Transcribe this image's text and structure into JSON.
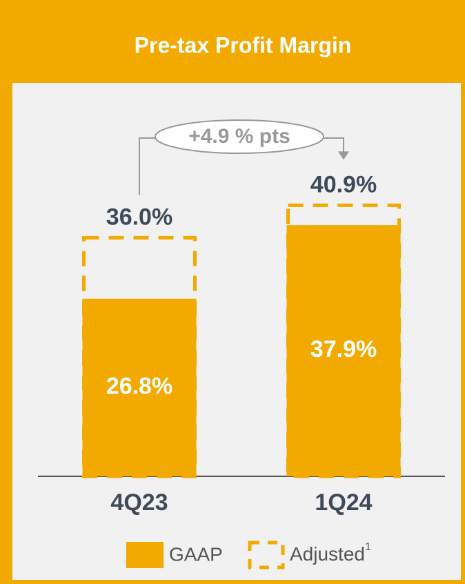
{
  "chart_data": {
    "type": "bar",
    "title": "Pre-tax Profit Margin",
    "categories": [
      "4Q23",
      "1Q24"
    ],
    "series": [
      {
        "name": "GAAP",
        "color": "#f2a900",
        "values": [
          26.8,
          37.9
        ],
        "value_labels": [
          "26.8%",
          "37.9%"
        ]
      },
      {
        "name": "Adjusted",
        "color": "#f2a900",
        "values": [
          36.0,
          40.9
        ],
        "value_labels": [
          "36.0%",
          "40.9%"
        ],
        "footnote": "1"
      }
    ],
    "annotation": "+4.9 % pts",
    "ylim": [
      0,
      50
    ]
  }
}
